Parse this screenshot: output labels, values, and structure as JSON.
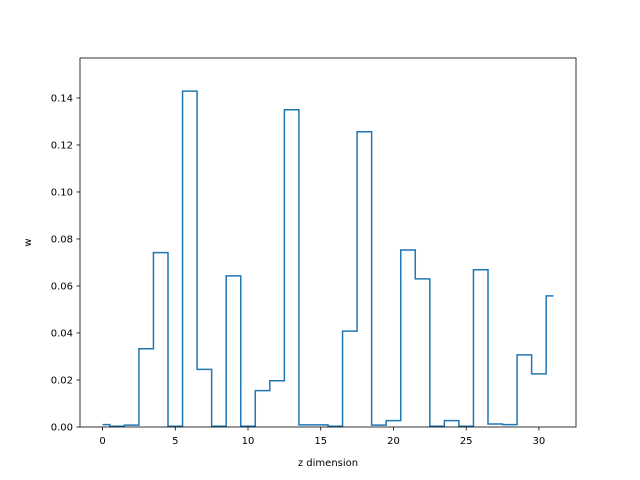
{
  "chart_data": {
    "type": "step",
    "title": "",
    "xlabel": "z dimension",
    "ylabel": "w",
    "xlim": [
      -1.55,
      32.55
    ],
    "ylim": [
      0,
      0.157
    ],
    "x": [
      0,
      1,
      2,
      3,
      4,
      5,
      6,
      7,
      8,
      9,
      10,
      11,
      12,
      13,
      14,
      15,
      16,
      17,
      18,
      19,
      20,
      21,
      22,
      23,
      24,
      25,
      26,
      27,
      28,
      29,
      30,
      31
    ],
    "values": [
      0.001,
      0.0003,
      0.0008,
      0.0333,
      0.0742,
      0.0003,
      0.1429,
      0.0245,
      0.0003,
      0.0643,
      0.0003,
      0.0155,
      0.0197,
      0.135,
      0.0009,
      0.0009,
      0.0003,
      0.0408,
      0.1256,
      0.0008,
      0.0027,
      0.0753,
      0.063,
      0.0003,
      0.0027,
      0.0003,
      0.0669,
      0.0013,
      0.001,
      0.0307,
      0.0226,
      0.0558
    ],
    "xticks": [
      0,
      5,
      10,
      15,
      20,
      25,
      30
    ],
    "xtick_labels": [
      "0",
      "5",
      "10",
      "15",
      "20",
      "25",
      "30"
    ],
    "yticks": [
      0,
      0.02,
      0.04,
      0.06,
      0.08,
      0.1,
      0.12,
      0.14
    ],
    "ytick_labels": [
      "0.00",
      "0.02",
      "0.04",
      "0.06",
      "0.08",
      "0.10",
      "0.12",
      "0.14"
    ],
    "grid": false,
    "legend": "none",
    "line_color": "#1f77b4"
  }
}
